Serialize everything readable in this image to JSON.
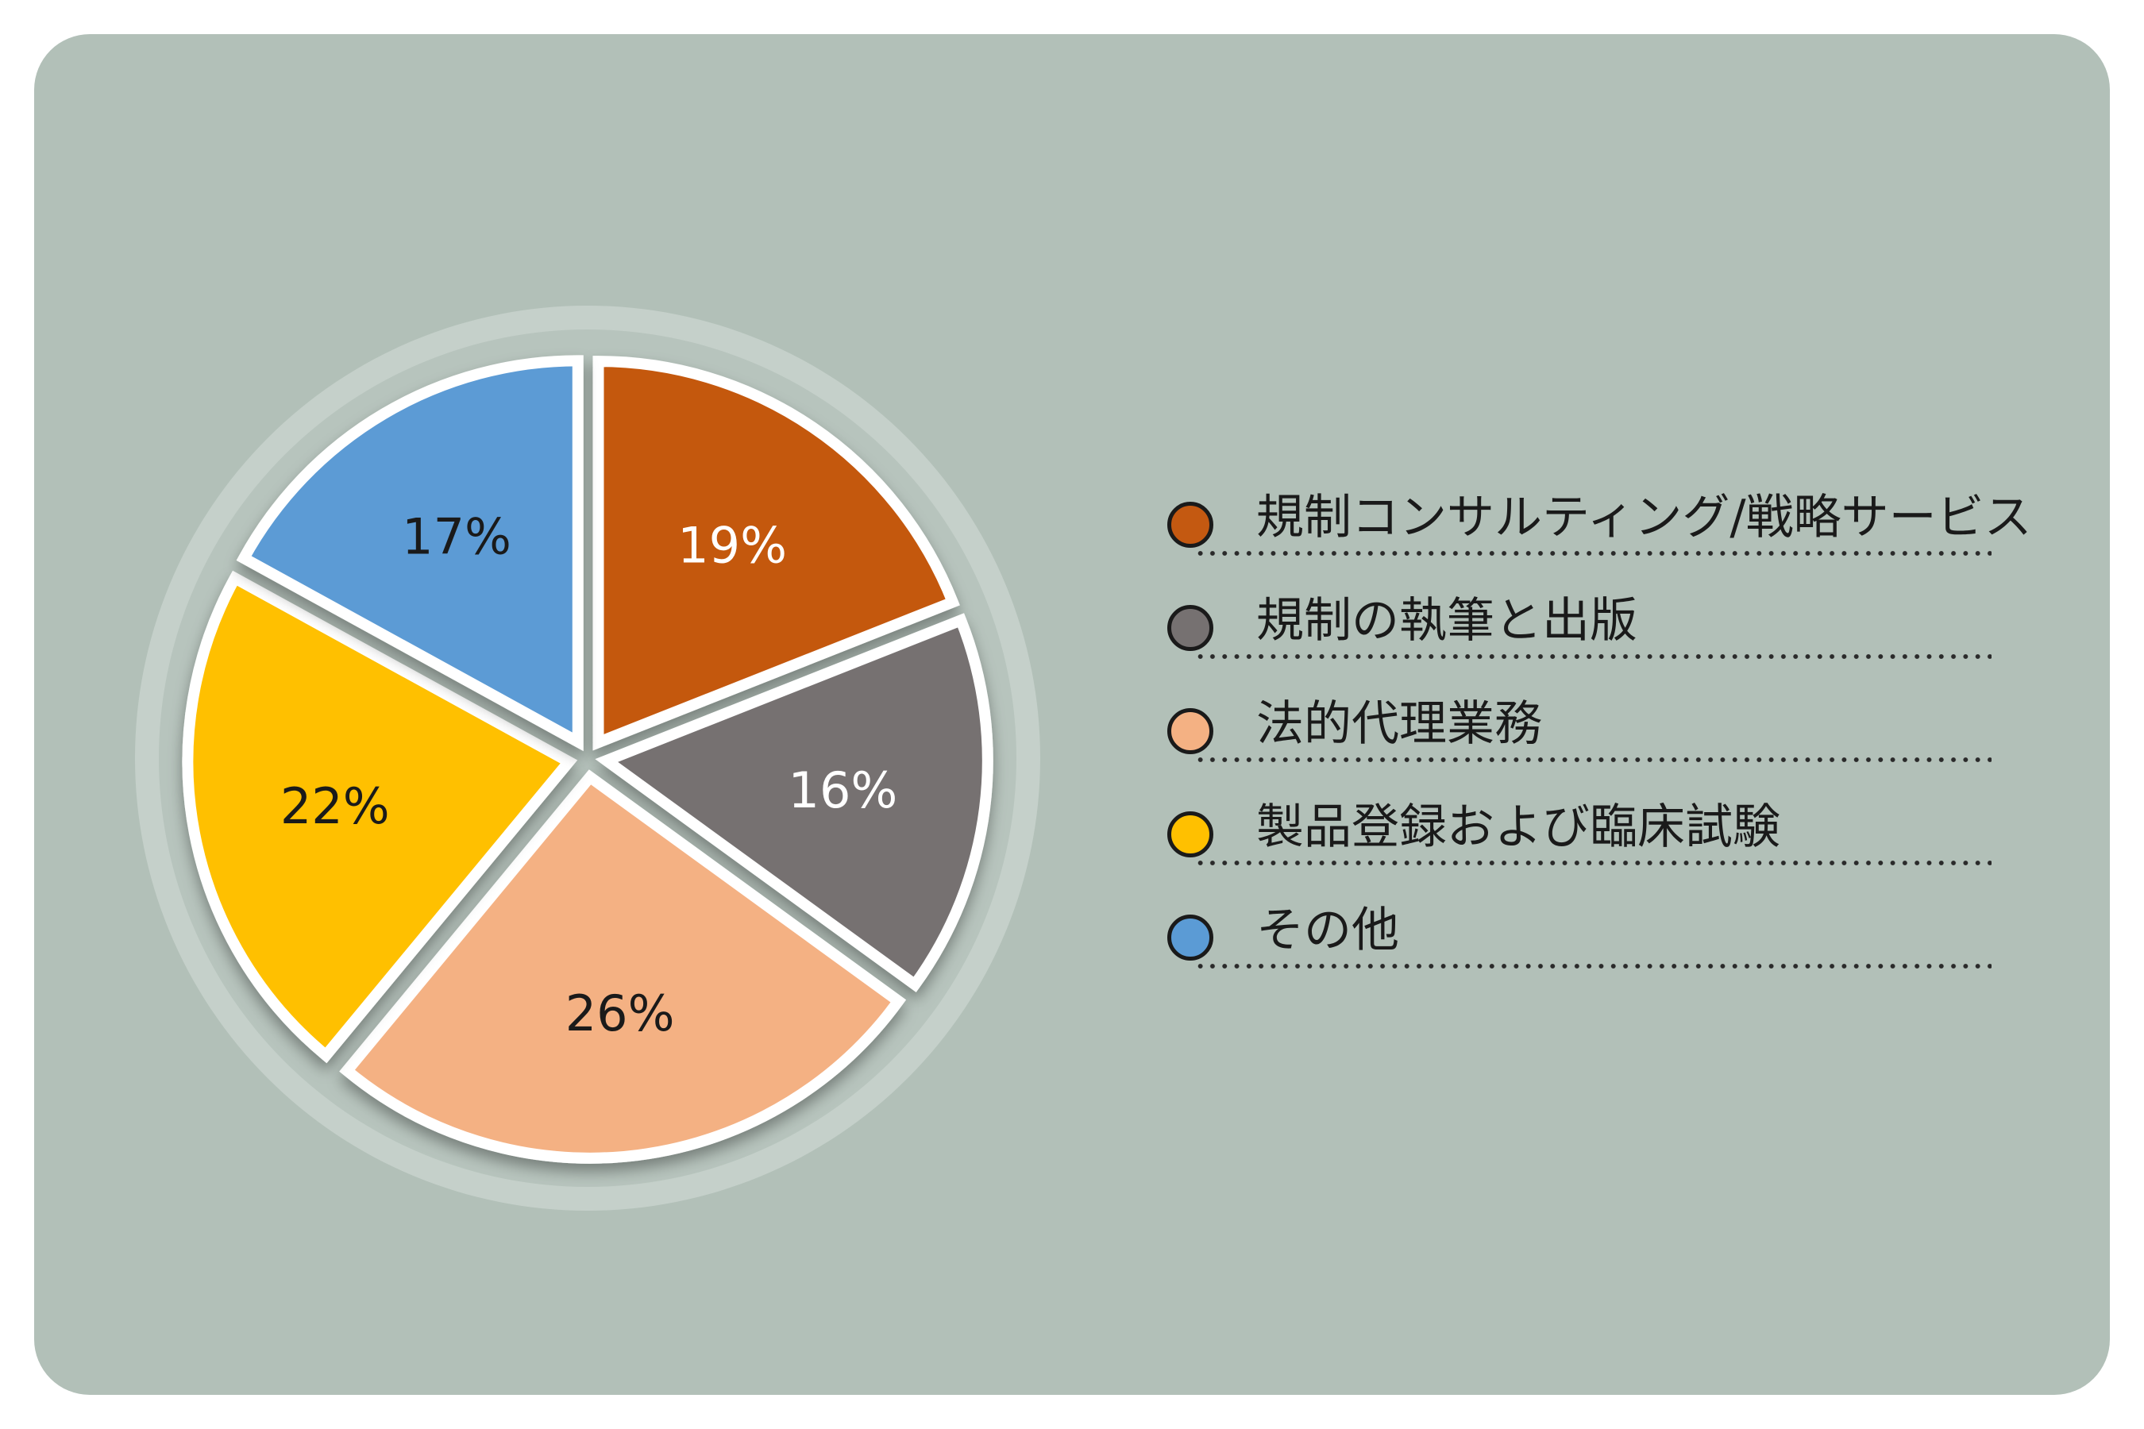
{
  "chart_data": {
    "type": "pie",
    "categories": [
      "規制コンサルティング/戦略サービス",
      "規制の執筆と出版",
      "法的代理業務",
      "製品登録および臨床試験",
      "その他"
    ],
    "values": [
      19,
      16,
      26,
      22,
      17
    ],
    "value_labels": [
      "19%",
      "16%",
      "26%",
      "22%",
      "17%"
    ],
    "colors": [
      "#c45911",
      "#767171",
      "#f4b183",
      "#ffc000",
      "#5b9bd5"
    ],
    "label_colors": [
      "#ffffff",
      "#ffffff",
      "#1a1a1a",
      "#1a1a1a",
      "#1a1a1a"
    ],
    "legend_position": "right",
    "title": ""
  },
  "background_color": "#b2c0b8"
}
